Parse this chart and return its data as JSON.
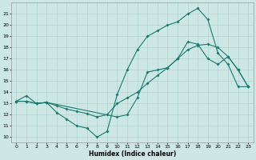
{
  "xlabel": "Humidex (Indice chaleur)",
  "bg_color": "#cde8e4",
  "grid_color": "#b0d4d0",
  "line_color": "#1a7a6e",
  "xlim": [
    -0.5,
    23.5
  ],
  "ylim": [
    9.5,
    22.0
  ],
  "yticks": [
    10,
    11,
    12,
    13,
    14,
    15,
    16,
    17,
    18,
    19,
    20,
    21
  ],
  "xticks": [
    0,
    1,
    2,
    3,
    4,
    5,
    6,
    7,
    8,
    9,
    10,
    11,
    12,
    13,
    14,
    15,
    16,
    17,
    18,
    19,
    20,
    21,
    22,
    23
  ],
  "line1_x": [
    0,
    1,
    2,
    3,
    4,
    5,
    6,
    7,
    8,
    9,
    10,
    11,
    12,
    13,
    14,
    15,
    16,
    17,
    18,
    19,
    20,
    21,
    22,
    23
  ],
  "line1_y": [
    13.2,
    13.7,
    13.0,
    13.1,
    12.2,
    11.6,
    11.0,
    10.8,
    10.0,
    10.5,
    13.8,
    16.0,
    17.8,
    19.0,
    19.5,
    20.0,
    20.3,
    21.0,
    21.5,
    20.5,
    17.5,
    16.5,
    14.5,
    14.5
  ],
  "line2_x": [
    0,
    1,
    2,
    3,
    4,
    5,
    6,
    7,
    8,
    9,
    10,
    11,
    12,
    13,
    14,
    15,
    16,
    17,
    18,
    19,
    20,
    21,
    22,
    23
  ],
  "line2_y": [
    13.2,
    13.2,
    13.0,
    13.1,
    12.8,
    12.5,
    12.3,
    12.1,
    11.8,
    12.0,
    13.0,
    13.5,
    14.0,
    14.8,
    15.5,
    16.2,
    17.0,
    17.8,
    18.2,
    18.3,
    18.0,
    17.2,
    16.0,
    14.5
  ],
  "line3_x": [
    0,
    1,
    2,
    3,
    10,
    11,
    12,
    13,
    14,
    15,
    16,
    17,
    18,
    19,
    20,
    21,
    22,
    23
  ],
  "line3_y": [
    13.2,
    13.2,
    13.0,
    13.1,
    11.8,
    12.0,
    13.5,
    15.8,
    16.0,
    16.2,
    17.0,
    18.5,
    18.3,
    17.0,
    16.5,
    17.2,
    16.0,
    14.5
  ]
}
